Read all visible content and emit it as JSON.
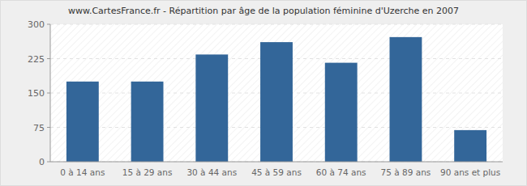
{
  "chart_data": {
    "type": "bar",
    "title": "www.CartesFrance.fr - Répartition par âge de la population féminine d'Uzerche en 2007",
    "categories": [
      "0 à 14 ans",
      "15 à 29 ans",
      "30 à 44 ans",
      "45 à 59 ans",
      "60 à 74 ans",
      "75 à 89 ans",
      "90 ans et plus"
    ],
    "values": [
      175,
      175,
      234,
      261,
      216,
      272,
      69
    ],
    "color": "#336699",
    "ylim": [
      0,
      300
    ],
    "yticks": [
      0,
      75,
      150,
      225,
      300
    ],
    "grid": true
  }
}
